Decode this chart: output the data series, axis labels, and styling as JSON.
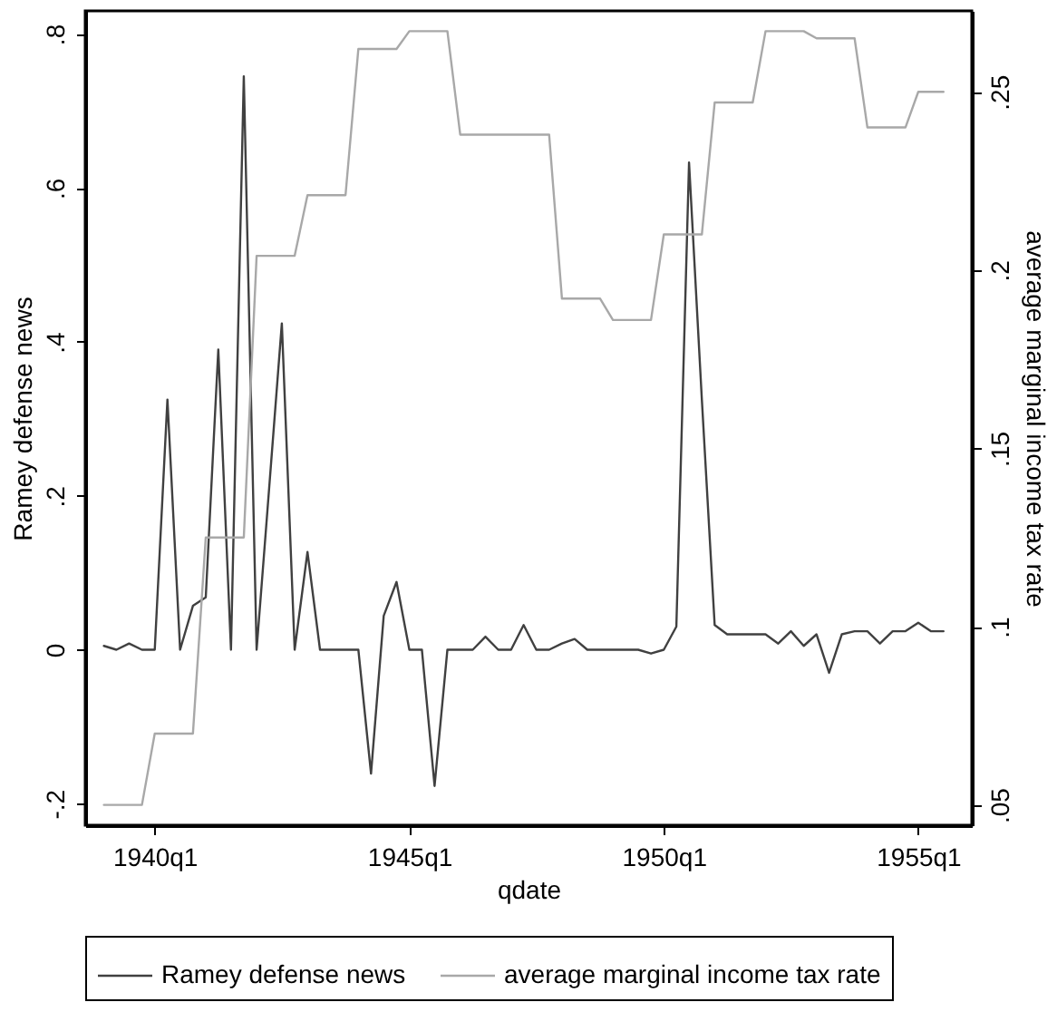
{
  "chart_data": {
    "type": "line",
    "xlabel": "qdate",
    "ylabel": "Ramey defense news",
    "y2label": "average marginal income tax rate",
    "x": [
      "1939-01",
      "1939-04",
      "1939-07",
      "1939-10",
      "1940-01",
      "1940-04",
      "1940-07",
      "1940-10",
      "1941-01",
      "1941-04",
      "1941-07",
      "1941-10",
      "1942-01",
      "1942-04",
      "1942-07",
      "1942-10",
      "1943-01",
      "1943-04",
      "1943-07",
      "1943-10",
      "1944-01",
      "1944-04",
      "1944-07",
      "1944-10",
      "1945-01",
      "1945-04",
      "1945-07",
      "1945-10",
      "1946-01",
      "1946-04",
      "1946-07",
      "1946-10",
      "1947-01",
      "1947-04",
      "1947-07",
      "1947-10",
      "1948-01",
      "1948-04",
      "1948-07",
      "1948-10",
      "1949-01",
      "1949-04",
      "1949-07",
      "1949-10",
      "1950-01",
      "1950-04",
      "1950-07",
      "1950-10",
      "1951-01",
      "1951-04",
      "1951-07",
      "1951-10",
      "1952-01",
      "1952-04",
      "1952-07",
      "1952-10",
      "1953-01",
      "1953-04",
      "1953-07",
      "1953-10",
      "1954-01",
      "1954-04",
      "1954-07",
      "1954-10",
      "1955-01",
      "1955-04",
      "1955-07"
    ],
    "series": [
      {
        "name": "Ramey defense news",
        "color": "#404040",
        "values": [
          0.005,
          0,
          0.008,
          0,
          0,
          0.325,
          0,
          0.057,
          0.068,
          0.39,
          0,
          0.745,
          0,
          0.21,
          0.424,
          0,
          0.127,
          0,
          0,
          0,
          0,
          -0.161,
          0.044,
          0.088,
          0,
          0,
          -0.177,
          0,
          0,
          0,
          0.017,
          0,
          0,
          0.032,
          0,
          0,
          0.008,
          0.014,
          0,
          0,
          0,
          0,
          0,
          -0.005,
          0,
          0.03,
          0.633,
          0.325,
          0.032,
          0.02,
          0.02,
          0.02,
          0.02,
          0.008,
          0.024,
          0.005,
          0.02,
          -0.03,
          0.02,
          0.024,
          0.024,
          0.008,
          0.024,
          0.024,
          0.035,
          0.024,
          0.024
        ]
      },
      {
        "name": "average marginal income tax rate",
        "color": "#a8a8a8",
        "axis": "y2",
        "values": [
          0.05,
          0.05,
          0.05,
          0.05,
          0.07,
          0.07,
          0.07,
          0.07,
          0.125,
          0.125,
          0.125,
          0.125,
          0.204,
          0.204,
          0.204,
          0.204,
          0.221,
          0.221,
          0.221,
          0.221,
          0.262,
          0.262,
          0.262,
          0.262,
          0.267,
          0.267,
          0.267,
          0.267,
          0.238,
          0.238,
          0.238,
          0.238,
          0.238,
          0.238,
          0.238,
          0.238,
          0.192,
          0.192,
          0.192,
          0.192,
          0.186,
          0.186,
          0.186,
          0.186,
          0.21,
          0.21,
          0.21,
          0.21,
          0.247,
          0.247,
          0.247,
          0.247,
          0.267,
          0.267,
          0.267,
          0.267,
          0.265,
          0.265,
          0.265,
          0.265,
          0.24,
          0.24,
          0.24,
          0.24,
          0.25,
          0.25,
          0.25
        ]
      }
    ],
    "xlim": [
      "1938-08-20",
      "1956-01-20"
    ],
    "xticks": [
      {
        "value": "1940-01",
        "label": "1940q1"
      },
      {
        "value": "1945-01",
        "label": "1945q1"
      },
      {
        "value": "1950-01",
        "label": "1950q1"
      },
      {
        "value": "1955-01",
        "label": "1955q1"
      }
    ],
    "ylim": [
      -0.228,
      0.83
    ],
    "yticks": [
      {
        "value": -0.2,
        "label": "-.2"
      },
      {
        "value": 0,
        "label": "0"
      },
      {
        "value": 0.2,
        "label": ".2"
      },
      {
        "value": 0.4,
        "label": ".4"
      },
      {
        "value": 0.6,
        "label": ".6"
      },
      {
        "value": 0.8,
        "label": ".8"
      }
    ],
    "y2lim": [
      0.0443,
      0.2727
    ],
    "y2ticks": [
      {
        "value": 0.05,
        "label": ".05"
      },
      {
        "value": 0.1,
        "label": ".1"
      },
      {
        "value": 0.15,
        "label": ".15"
      },
      {
        "value": 0.2,
        "label": ".2"
      },
      {
        "value": 0.25,
        "label": ".25"
      }
    ],
    "grid": false,
    "legend": "bottom",
    "marker": "none",
    "line_style": "solid"
  }
}
